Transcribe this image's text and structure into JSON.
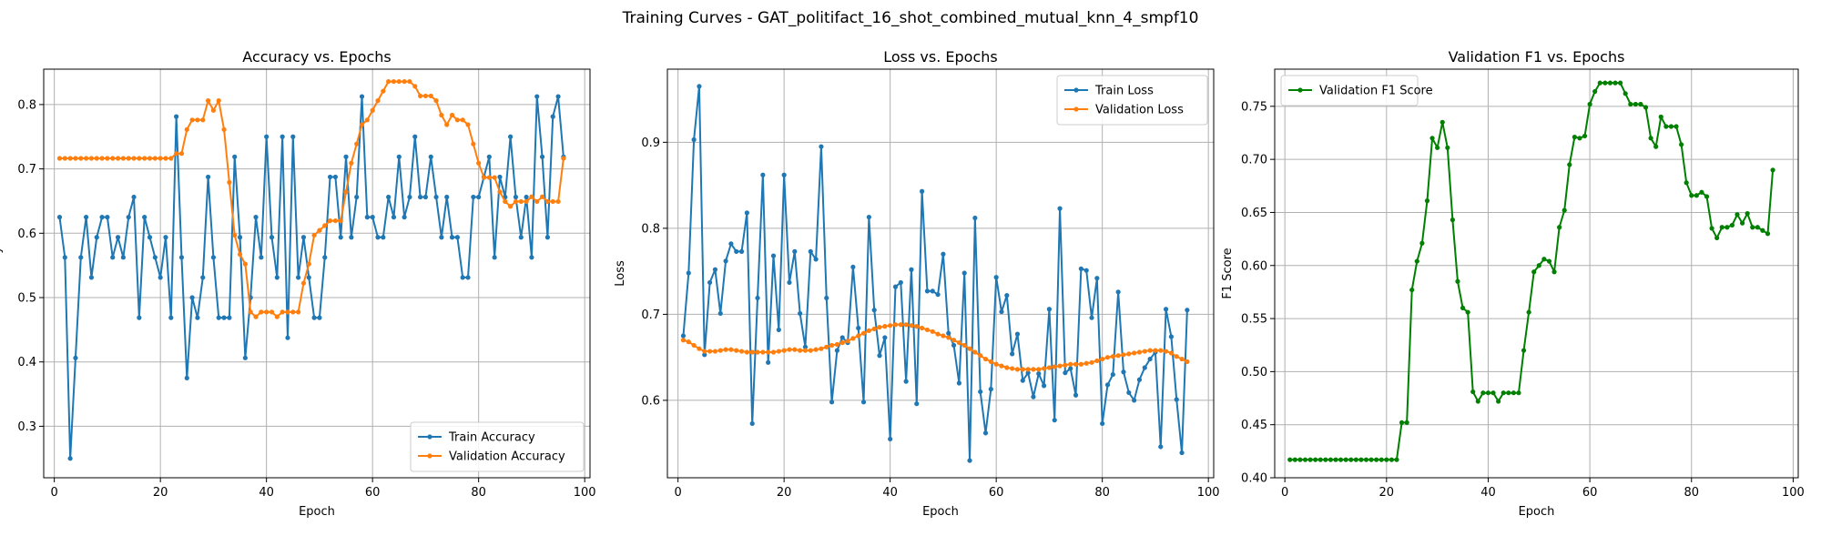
{
  "figure_title": "Training Curves - GAT_politifact_16_shot_combined_mutual_knn_4_smpf10",
  "colors": {
    "train": "#1f77b4",
    "validation": "#ff7f0e",
    "f1": "#008000",
    "grid": "#b0b0b0"
  },
  "chart_data": [
    {
      "type": "line",
      "title": "Accuracy vs. Epochs",
      "xlabel": "Epoch",
      "ylabel": "Accuracy",
      "xlim": [
        -2,
        101
      ],
      "ylim": [
        0.22,
        0.855
      ],
      "xticks": [
        0,
        20,
        40,
        60,
        80,
        100
      ],
      "yticks": [
        0.3,
        0.4,
        0.5,
        0.6,
        0.7,
        0.8
      ],
      "ytick_labels": [
        "0.3",
        "0.4",
        "0.5",
        "0.6",
        "0.7",
        "0.8"
      ],
      "grid": true,
      "legend": "lower-right",
      "x_start": 1,
      "series": [
        {
          "name": "Train Accuracy",
          "color": "#1f77b4",
          "values": [
            0.625,
            0.5625,
            0.25,
            0.40625,
            0.5625,
            0.625,
            0.53125,
            0.59375,
            0.625,
            0.625,
            0.5625,
            0.59375,
            0.5625,
            0.625,
            0.65625,
            0.46875,
            0.625,
            0.59375,
            0.5625,
            0.53125,
            0.59375,
            0.46875,
            0.78125,
            0.5625,
            0.375,
            0.5,
            0.46875,
            0.53125,
            0.6875,
            0.5625,
            0.46875,
            0.46875,
            0.46875,
            0.71875,
            0.59375,
            0.40625,
            0.5,
            0.625,
            0.5625,
            0.75,
            0.59375,
            0.53125,
            0.75,
            0.4375,
            0.75,
            0.53125,
            0.59375,
            0.53125,
            0.46875,
            0.46875,
            0.5625,
            0.6875,
            0.6875,
            0.59375,
            0.71875,
            0.59375,
            0.65625,
            0.8125,
            0.625,
            0.625,
            0.59375,
            0.59375,
            0.65625,
            0.625,
            0.71875,
            0.625,
            0.65625,
            0.75,
            0.65625,
            0.65625,
            0.71875,
            0.65625,
            0.59375,
            0.65625,
            0.59375,
            0.59375,
            0.53125,
            0.53125,
            0.65625,
            0.65625,
            0.6875,
            0.71875,
            0.5625,
            0.6875,
            0.65625,
            0.75,
            0.65625,
            0.59375,
            0.65625,
            0.5625,
            0.8125,
            0.71875,
            0.59375,
            0.78125,
            0.8125,
            0.71875
          ]
        },
        {
          "name": "Validation Accuracy",
          "color": "#ff7f0e",
          "values": [
            0.7164,
            0.7164,
            0.7164,
            0.7164,
            0.7164,
            0.7164,
            0.7164,
            0.7164,
            0.7164,
            0.7164,
            0.7164,
            0.7164,
            0.7164,
            0.7164,
            0.7164,
            0.7164,
            0.7164,
            0.7164,
            0.7164,
            0.7164,
            0.7164,
            0.7164,
            0.7239,
            0.7239,
            0.7612,
            0.7761,
            0.7761,
            0.7761,
            0.806,
            0.791,
            0.806,
            0.7612,
            0.6791,
            0.597,
            0.5672,
            0.5522,
            0.4776,
            0.4701,
            0.4776,
            0.4776,
            0.4776,
            0.4701,
            0.4776,
            0.4776,
            0.4776,
            0.4776,
            0.5224,
            0.5522,
            0.597,
            0.6045,
            0.6119,
            0.6194,
            0.6194,
            0.6194,
            0.6642,
            0.709,
            0.7388,
            0.7687,
            0.7761,
            0.791,
            0.806,
            0.8209,
            0.8358,
            0.8358,
            0.8358,
            0.8358,
            0.8358,
            0.8284,
            0.8134,
            0.8134,
            0.8134,
            0.806,
            0.7836,
            0.7687,
            0.7836,
            0.7761,
            0.7761,
            0.7687,
            0.7388,
            0.709,
            0.6866,
            0.6866,
            0.6866,
            0.6642,
            0.6493,
            0.6418,
            0.6493,
            0.6493,
            0.6493,
            0.6567,
            0.6493,
            0.6567,
            0.6493,
            0.6493,
            0.6493,
            0.7164
          ]
        }
      ]
    },
    {
      "type": "line",
      "title": "Loss vs. Epochs",
      "xlabel": "Epoch",
      "ylabel": "Loss",
      "xlim": [
        -2,
        101
      ],
      "ylim": [
        0.51,
        0.985
      ],
      "xticks": [
        0,
        20,
        40,
        60,
        80,
        100
      ],
      "yticks": [
        0.6,
        0.7,
        0.8,
        0.9
      ],
      "ytick_labels": [
        "0.6",
        "0.7",
        "0.8",
        "0.9"
      ],
      "grid": true,
      "legend": "top-right",
      "x_start": 1,
      "series": [
        {
          "name": "Train Loss",
          "color": "#1f77b4",
          "values": [
            0.675,
            0.748,
            0.903,
            0.965,
            0.653,
            0.737,
            0.752,
            0.701,
            0.762,
            0.782,
            0.773,
            0.773,
            0.818,
            0.573,
            0.719,
            0.862,
            0.644,
            0.768,
            0.682,
            0.862,
            0.737,
            0.773,
            0.701,
            0.662,
            0.773,
            0.764,
            0.895,
            0.719,
            0.598,
            0.658,
            0.673,
            0.667,
            0.755,
            0.684,
            0.598,
            0.813,
            0.705,
            0.652,
            0.673,
            0.555,
            0.732,
            0.737,
            0.622,
            0.752,
            0.596,
            0.843,
            0.727,
            0.727,
            0.723,
            0.77,
            0.678,
            0.664,
            0.62,
            0.748,
            0.53,
            0.812,
            0.61,
            0.562,
            0.613,
            0.743,
            0.703,
            0.722,
            0.654,
            0.677,
            0.623,
            0.632,
            0.604,
            0.631,
            0.617,
            0.706,
            0.577,
            0.823,
            0.632,
            0.637,
            0.606,
            0.753,
            0.751,
            0.696,
            0.742,
            0.573,
            0.618,
            0.63,
            0.726,
            0.633,
            0.609,
            0.6,
            0.624,
            0.638,
            0.648,
            0.656,
            0.546,
            0.706,
            0.674,
            0.601,
            0.539,
            0.705
          ]
        },
        {
          "name": "Validation Loss",
          "color": "#ff7f0e",
          "values": [
            0.67,
            0.668,
            0.664,
            0.66,
            0.657,
            0.657,
            0.657,
            0.658,
            0.659,
            0.659,
            0.658,
            0.657,
            0.656,
            0.656,
            0.656,
            0.656,
            0.656,
            0.656,
            0.657,
            0.658,
            0.659,
            0.659,
            0.658,
            0.658,
            0.658,
            0.659,
            0.66,
            0.662,
            0.664,
            0.665,
            0.667,
            0.669,
            0.672,
            0.675,
            0.678,
            0.681,
            0.683,
            0.685,
            0.686,
            0.687,
            0.688,
            0.688,
            0.688,
            0.687,
            0.686,
            0.684,
            0.682,
            0.68,
            0.677,
            0.675,
            0.673,
            0.67,
            0.667,
            0.664,
            0.66,
            0.656,
            0.652,
            0.648,
            0.645,
            0.642,
            0.64,
            0.638,
            0.637,
            0.636,
            0.636,
            0.636,
            0.636,
            0.636,
            0.637,
            0.638,
            0.639,
            0.64,
            0.641,
            0.642,
            0.642,
            0.642,
            0.643,
            0.644,
            0.646,
            0.648,
            0.65,
            0.651,
            0.652,
            0.653,
            0.654,
            0.655,
            0.656,
            0.657,
            0.658,
            0.658,
            0.658,
            0.657,
            0.655,
            0.651,
            0.648,
            0.645
          ]
        }
      ]
    },
    {
      "type": "line",
      "title": "Validation F1 vs. Epochs",
      "xlabel": "Epoch",
      "ylabel": "F1 Score",
      "xlim": [
        -2,
        101
      ],
      "ylim": [
        0.4,
        0.785
      ],
      "xticks": [
        0,
        20,
        40,
        60,
        80,
        100
      ],
      "yticks": [
        0.4,
        0.45,
        0.5,
        0.55,
        0.6,
        0.65,
        0.7,
        0.75
      ],
      "ytick_labels": [
        "0.40",
        "0.45",
        "0.50",
        "0.55",
        "0.60",
        "0.65",
        "0.70",
        "0.75"
      ],
      "grid": true,
      "legend": "top-left",
      "x_start": 1,
      "series": [
        {
          "name": "Validation F1 Score",
          "color": "#008000",
          "values": [
            0.417,
            0.417,
            0.417,
            0.417,
            0.417,
            0.417,
            0.417,
            0.417,
            0.417,
            0.417,
            0.417,
            0.417,
            0.417,
            0.417,
            0.417,
            0.417,
            0.417,
            0.417,
            0.417,
            0.417,
            0.417,
            0.417,
            0.452,
            0.452,
            0.577,
            0.604,
            0.621,
            0.661,
            0.72,
            0.711,
            0.735,
            0.711,
            0.643,
            0.585,
            0.56,
            0.556,
            0.481,
            0.472,
            0.48,
            0.48,
            0.48,
            0.472,
            0.48,
            0.48,
            0.48,
            0.48,
            0.52,
            0.556,
            0.594,
            0.6,
            0.606,
            0.604,
            0.594,
            0.636,
            0.652,
            0.695,
            0.721,
            0.72,
            0.722,
            0.752,
            0.764,
            0.772,
            0.772,
            0.772,
            0.772,
            0.772,
            0.762,
            0.752,
            0.752,
            0.752,
            0.749,
            0.72,
            0.712,
            0.74,
            0.731,
            0.731,
            0.731,
            0.714,
            0.678,
            0.666,
            0.666,
            0.669,
            0.665,
            0.635,
            0.626,
            0.636,
            0.636,
            0.638,
            0.648,
            0.64,
            0.649,
            0.636,
            0.636,
            0.633,
            0.63,
            0.69
          ]
        }
      ]
    }
  ]
}
